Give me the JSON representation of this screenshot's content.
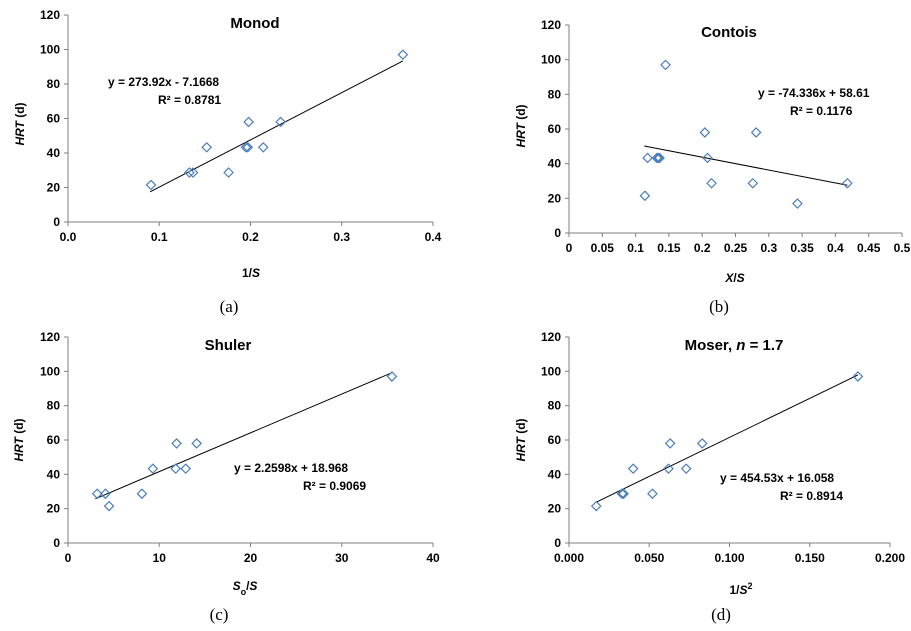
{
  "chart_data": [
    {
      "type": "scatter",
      "title": "Monod",
      "caption": "(a)",
      "xlabel": "1/S",
      "xlabel_parts": [
        {
          "t": "1/",
          "i": false
        },
        {
          "t": "S",
          "i": true
        }
      ],
      "ylabel": "HRT (d)",
      "ylabel_parts": [
        {
          "t": "HRT",
          "i": true
        },
        {
          "t": " (d)",
          "i": false
        }
      ],
      "xlim": [
        0,
        0.4
      ],
      "ylim": [
        0,
        120
      ],
      "xticks": [
        "0.0",
        "0.1",
        "0.2",
        "0.3",
        "0.4"
      ],
      "yticks": [
        "0",
        "20",
        "40",
        "60",
        "80",
        "100",
        "120"
      ],
      "equation": "y = 273.92x  - 7.1668",
      "r2": "R² = 0.8781",
      "trendline": {
        "slope": 273.92,
        "intercept": -7.1668,
        "xrange": [
          0.09,
          0.367
        ]
      },
      "points": [
        {
          "x": 0.091,
          "y": 21.5
        },
        {
          "x": 0.133,
          "y": 28.7
        },
        {
          "x": 0.137,
          "y": 28.7
        },
        {
          "x": 0.152,
          "y": 43.3
        },
        {
          "x": 0.176,
          "y": 28.7
        },
        {
          "x": 0.195,
          "y": 43.3
        },
        {
          "x": 0.197,
          "y": 43.3
        },
        {
          "x": 0.198,
          "y": 58.0
        },
        {
          "x": 0.214,
          "y": 43.3
        },
        {
          "x": 0.233,
          "y": 58.0
        },
        {
          "x": 0.367,
          "y": 97.0
        }
      ]
    },
    {
      "type": "scatter",
      "title": "Contois",
      "caption": "(b)",
      "xlabel": "X/S",
      "xlabel_parts": [
        {
          "t": "X",
          "i": true
        },
        {
          "t": "/",
          "i": false
        },
        {
          "t": "S",
          "i": true
        }
      ],
      "ylabel": "HRT (d)",
      "ylabel_parts": [
        {
          "t": "HRT",
          "i": true
        },
        {
          "t": " (d)",
          "i": false
        }
      ],
      "xlim": [
        0,
        0.5
      ],
      "ylim": [
        0,
        120
      ],
      "xticks": [
        "0",
        "0.05",
        "0.1",
        "0.15",
        "0.2",
        "0.25",
        "0.3",
        "0.35",
        "0.4",
        "0.45",
        "0.5"
      ],
      "yticks": [
        "0",
        "20",
        "40",
        "60",
        "80",
        "100",
        "120"
      ],
      "equation": "y = -74.336x + 58.61",
      "r2": "R² = 0.1176",
      "trendline": {
        "slope": -74.336,
        "intercept": 58.61,
        "xrange": [
          0.113,
          0.418
        ]
      },
      "points": [
        {
          "x": 0.114,
          "y": 21.5
        },
        {
          "x": 0.118,
          "y": 43.3
        },
        {
          "x": 0.132,
          "y": 43.3
        },
        {
          "x": 0.134,
          "y": 43.3
        },
        {
          "x": 0.136,
          "y": 43.3
        },
        {
          "x": 0.145,
          "y": 97.0
        },
        {
          "x": 0.204,
          "y": 58.0
        },
        {
          "x": 0.208,
          "y": 43.3
        },
        {
          "x": 0.214,
          "y": 28.7
        },
        {
          "x": 0.276,
          "y": 28.7
        },
        {
          "x": 0.281,
          "y": 58.0
        },
        {
          "x": 0.343,
          "y": 17.0
        },
        {
          "x": 0.418,
          "y": 28.7
        }
      ]
    },
    {
      "type": "scatter",
      "title": "Shuler",
      "caption": "(c)",
      "xlabel": "So/S",
      "xlabel_parts": [
        {
          "t": "S",
          "i": true
        },
        {
          "t": "o",
          "i": false,
          "sub": true
        },
        {
          "t": "/",
          "i": false
        },
        {
          "t": "S",
          "i": true
        }
      ],
      "ylabel": "HRT (d)",
      "ylabel_parts": [
        {
          "t": "HRT",
          "i": true
        },
        {
          "t": " (d)",
          "i": false
        }
      ],
      "xlim": [
        0,
        40
      ],
      "ylim": [
        0,
        120
      ],
      "xticks": [
        "0",
        "10",
        "20",
        "30",
        "40"
      ],
      "yticks": [
        "0",
        "20",
        "40",
        "60",
        "80",
        "100",
        "120"
      ],
      "equation": "y = 2.2598x + 18.968",
      "r2": "R² = 0.9069",
      "trendline": {
        "slope": 2.2598,
        "intercept": 18.968,
        "xrange": [
          3.0,
          35.5
        ]
      },
      "points": [
        {
          "x": 3.2,
          "y": 28.7
        },
        {
          "x": 4.1,
          "y": 28.7
        },
        {
          "x": 4.5,
          "y": 21.5
        },
        {
          "x": 8.1,
          "y": 28.7
        },
        {
          "x": 9.3,
          "y": 43.3
        },
        {
          "x": 11.8,
          "y": 43.3
        },
        {
          "x": 11.9,
          "y": 58.0
        },
        {
          "x": 12.9,
          "y": 43.3
        },
        {
          "x": 14.1,
          "y": 58.0
        },
        {
          "x": 35.5,
          "y": 97.0
        }
      ]
    },
    {
      "type": "scatter",
      "title": "Moser, n = 1.7",
      "title_parts": [
        {
          "t": "Moser, ",
          "i": false
        },
        {
          "t": "n",
          "i": true
        },
        {
          "t": " = 1.7",
          "i": false
        }
      ],
      "caption": "(d)",
      "xlabel": "1/S2",
      "xlabel_parts": [
        {
          "t": "1/",
          "i": false
        },
        {
          "t": "S",
          "i": true
        },
        {
          "t": "2",
          "i": false,
          "sup": true
        }
      ],
      "ylabel": "HRT (d)",
      "ylabel_parts": [
        {
          "t": "HRT",
          "i": true
        },
        {
          "t": " (d)",
          "i": false
        }
      ],
      "xlim": [
        0,
        0.2
      ],
      "ylim": [
        0,
        120
      ],
      "xticks": [
        "0.000",
        "0.050",
        "0.100",
        "0.150",
        "0.200"
      ],
      "yticks": [
        "0",
        "20",
        "40",
        "60",
        "80",
        "100",
        "120"
      ],
      "equation": "y = 454.53x + 16.058",
      "r2": "R² = 0.8914",
      "trendline": {
        "slope": 454.53,
        "intercept": 16.058,
        "xrange": [
          0.017,
          0.18
        ]
      },
      "points": [
        {
          "x": 0.017,
          "y": 21.5
        },
        {
          "x": 0.033,
          "y": 28.7
        },
        {
          "x": 0.034,
          "y": 28.7
        },
        {
          "x": 0.04,
          "y": 43.3
        },
        {
          "x": 0.052,
          "y": 28.7
        },
        {
          "x": 0.062,
          "y": 43.3
        },
        {
          "x": 0.063,
          "y": 58.0
        },
        {
          "x": 0.073,
          "y": 43.3
        },
        {
          "x": 0.083,
          "y": 58.0
        },
        {
          "x": 0.18,
          "y": 97.0
        }
      ]
    }
  ]
}
